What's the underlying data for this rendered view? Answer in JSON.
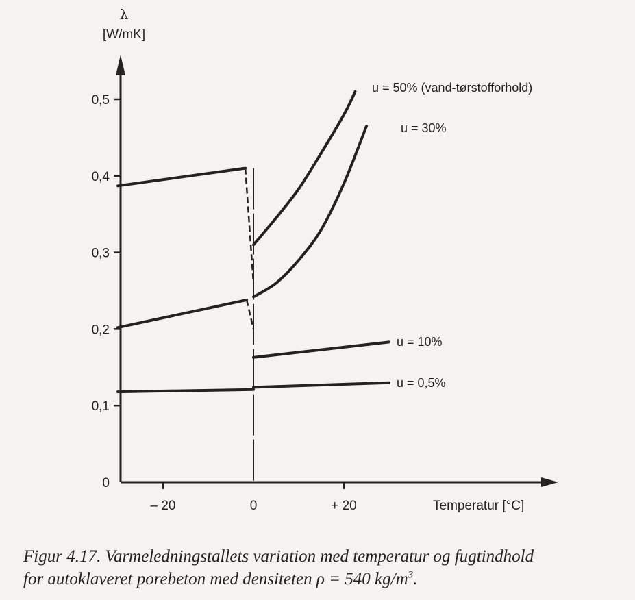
{
  "chart_data": {
    "type": "line",
    "y_axis": {
      "symbol": "λ",
      "unit": "[W/mK]",
      "ylim": [
        0,
        0.55
      ],
      "ticks": [
        {
          "value": 0,
          "label": "0"
        },
        {
          "value": 0.1,
          "label": "0,1"
        },
        {
          "value": 0.2,
          "label": "0,2"
        },
        {
          "value": 0.3,
          "label": "0,3"
        },
        {
          "value": 0.4,
          "label": "0,4"
        },
        {
          "value": 0.5,
          "label": "0,5"
        }
      ]
    },
    "x_axis": {
      "label": "Temperatur  [°C]",
      "xlim": [
        -30,
        45
      ],
      "ticks": [
        {
          "value": -20,
          "label": "– 20"
        },
        {
          "value": 0,
          "label": "0"
        },
        {
          "value": 20,
          "label": "+ 20"
        }
      ]
    },
    "series": [
      {
        "name": "u = 50% (vand-tørstofforhold)",
        "frozen": [
          [
            -30,
            0.387
          ],
          [
            -1.8,
            0.41
          ]
        ],
        "transition": [
          [
            -1.8,
            0.41
          ],
          [
            0,
            0.26
          ]
        ],
        "unfrozen": [
          [
            0,
            0.31
          ],
          [
            5,
            0.345
          ],
          [
            10,
            0.383
          ],
          [
            15,
            0.43
          ],
          [
            20,
            0.48
          ],
          [
            22.5,
            0.51
          ]
        ]
      },
      {
        "name": "u = 30%",
        "frozen": [
          [
            -30,
            0.202
          ],
          [
            -1.5,
            0.238
          ]
        ],
        "transition": [
          [
            -1.5,
            0.238
          ],
          [
            0,
            0.2
          ]
        ],
        "unfrozen": [
          [
            0,
            0.242
          ],
          [
            5,
            0.26
          ],
          [
            10,
            0.29
          ],
          [
            15,
            0.33
          ],
          [
            20,
            0.39
          ],
          [
            25,
            0.465
          ]
        ]
      },
      {
        "name": "u = 10%",
        "frozen": [],
        "transition": [],
        "unfrozen": [
          [
            0,
            0.163
          ],
          [
            30,
            0.183
          ]
        ]
      },
      {
        "name": "u = 0,5%",
        "frozen": [
          [
            -30,
            0.118
          ],
          [
            0,
            0.121
          ]
        ],
        "transition": [],
        "unfrozen": [
          [
            0,
            0.124
          ],
          [
            30,
            0.13
          ]
        ]
      }
    ],
    "vertical_marker": {
      "x": 0,
      "ylim": [
        0,
        0.41
      ],
      "style": "dashed"
    }
  },
  "caption": {
    "line1": "Figur 4.17. Varmeledningstallets variation med temperatur og fugtindhold",
    "line2_prefix": "for autoklaveret porebeton med densiteten ",
    "rho": "ρ",
    "line2_value": " = 540 kg/m",
    "line2_exponent": "3",
    "line2_end": "."
  }
}
